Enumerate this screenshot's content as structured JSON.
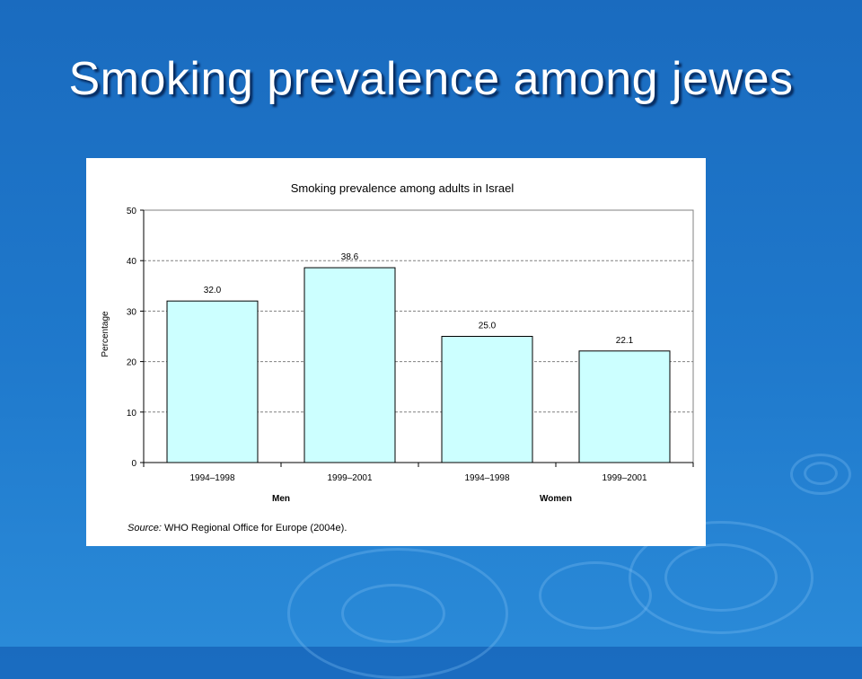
{
  "slide": {
    "title": "Smoking prevalence among jewes"
  },
  "chart_data": {
    "type": "bar",
    "title": "Smoking prevalence among adults in Israel",
    "ylabel": "Percentage",
    "ylim": [
      0,
      50
    ],
    "yticks": [
      0,
      10,
      20,
      30,
      40,
      50
    ],
    "categories": [
      "1994–1998",
      "1999–2001",
      "1994–1998",
      "1999–2001"
    ],
    "groups": [
      {
        "label": "Men",
        "categories": [
          0,
          1
        ]
      },
      {
        "label": "Women",
        "categories": [
          2,
          3
        ]
      }
    ],
    "values": [
      32.0,
      38.6,
      25.0,
      22.1
    ],
    "value_labels": [
      "32.0",
      "38.6",
      "25.0",
      "22.1"
    ],
    "grid": true,
    "bar_color": "#ccffff",
    "source_label": "Source:",
    "source_text": "WHO Regional Office for Europe (2004e)."
  }
}
